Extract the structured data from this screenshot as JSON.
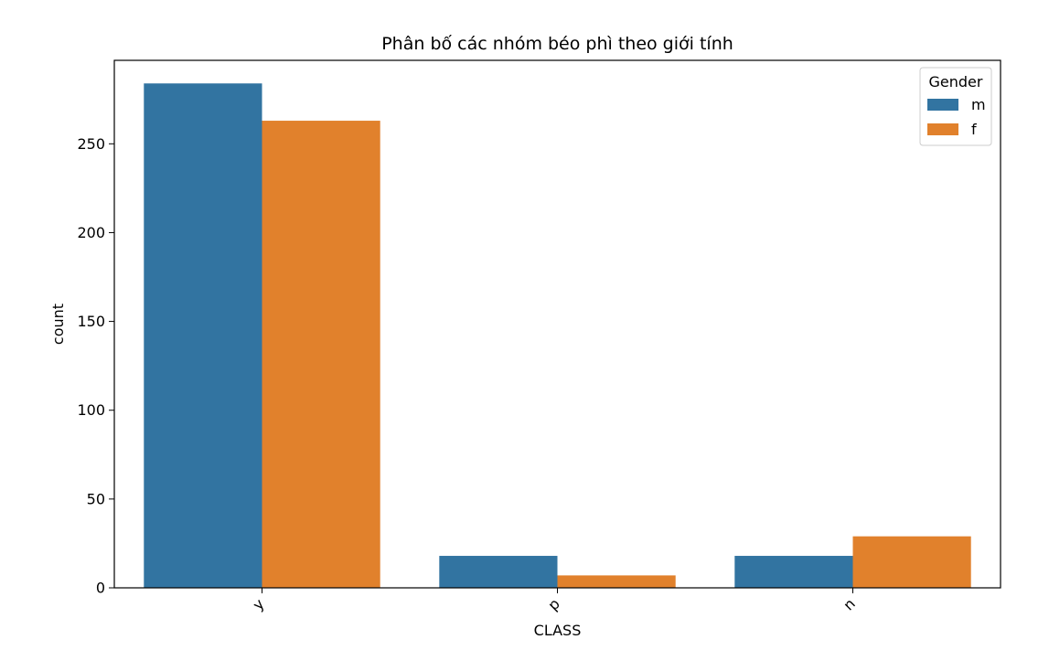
{
  "chart_data": {
    "type": "bar",
    "title": "Phân bố các nhóm béo phì theo giới tính",
    "xlabel": "CLASS",
    "ylabel": "count",
    "categories": [
      "y",
      "p",
      "n"
    ],
    "series": [
      {
        "name": "m",
        "values": [
          284,
          18,
          18
        ],
        "color": "#3274a1"
      },
      {
        "name": "f",
        "values": [
          263,
          7,
          29
        ],
        "color": "#e1812c"
      }
    ],
    "ylim": [
      0,
      297
    ],
    "yticks": [
      0,
      50,
      100,
      150,
      200,
      250
    ],
    "grid": false,
    "legend": {
      "title": "Gender",
      "placement": "top-right"
    }
  }
}
